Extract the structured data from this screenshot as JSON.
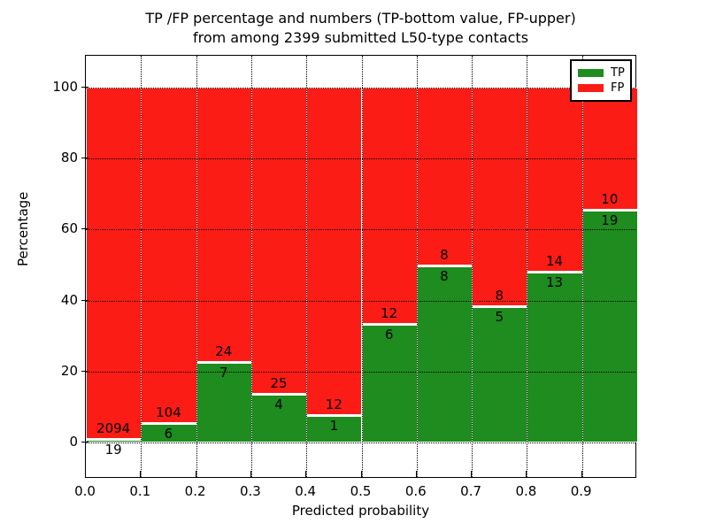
{
  "title": {
    "line1": "TP /FP percentage and numbers (TP-bottom value, FP-upper)",
    "line2": "from among 2399 submitted L50-type contacts"
  },
  "axes": {
    "xlabel": "Predicted probability",
    "ylabel": "Percentage",
    "x_tick_labels": [
      "0.0",
      "0.1",
      "0.2",
      "0.3",
      "0.4",
      "0.5",
      "0.6",
      "0.7",
      "0.8",
      "0.9"
    ],
    "y_tick_labels": [
      "0",
      "20",
      "40",
      "60",
      "80",
      "100"
    ],
    "y_tick_values": [
      0,
      20,
      40,
      60,
      80,
      100
    ],
    "xlim": [
      0.0,
      1.0
    ],
    "ylim": [
      -10,
      110
    ],
    "grid": "dotted black, horizontal at y ticks and vertical at x ticks"
  },
  "legend": {
    "position": "upper right",
    "items": [
      {
        "label": "TP",
        "color": "#1e8c1e"
      },
      {
        "label": "FP",
        "color": "#fb1c15"
      }
    ]
  },
  "colors": {
    "tp_green": "#1e8c1e",
    "fp_red": "#fb1c15",
    "bar_edge": "#ffffff",
    "background": "#ffffff",
    "text": "#000000"
  },
  "chart_data": {
    "type": "bar",
    "stacked": true,
    "normalized_to_100_percent": true,
    "title": "TP /FP percentage and numbers (TP-bottom value, FP-upper) from among 2399 submitted L50-type contacts",
    "xlabel": "Predicted probability",
    "ylabel": "Percentage",
    "xlim": [
      0.0,
      1.0
    ],
    "ylim": [
      -10,
      110
    ],
    "bin_width": 0.1,
    "categories": [
      "0.0-0.1",
      "0.1-0.2",
      "0.2-0.3",
      "0.3-0.4",
      "0.4-0.5",
      "0.5-0.6",
      "0.6-0.7",
      "0.7-0.8",
      "0.8-0.9",
      "0.9-1.0"
    ],
    "series": [
      {
        "name": "TP",
        "color": "#1e8c1e",
        "counts": [
          19,
          6,
          7,
          4,
          1,
          6,
          8,
          5,
          13,
          19
        ]
      },
      {
        "name": "FP",
        "color": "#fb1c15",
        "counts": [
          2094,
          104,
          24,
          25,
          12,
          12,
          8,
          8,
          14,
          10
        ]
      }
    ],
    "tp_percent_approx": [
      0.9,
      5.5,
      22.6,
      13.8,
      7.7,
      33.3,
      50.0,
      38.5,
      48.1,
      65.5
    ],
    "total_contacts": 2399,
    "legend_entries": [
      "TP",
      "FP"
    ]
  }
}
